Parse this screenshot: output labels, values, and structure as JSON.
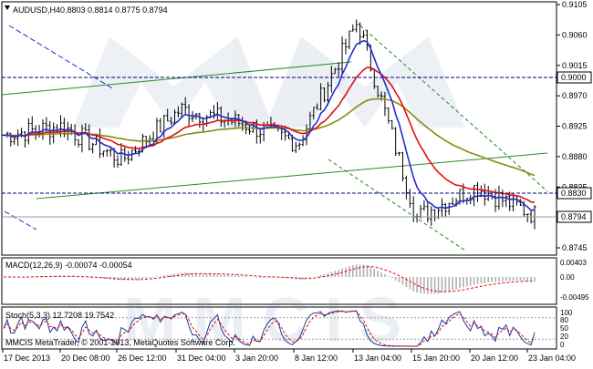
{
  "chart_header": {
    "symbol": "AUDUSD,H4",
    "ohlc": "0.8803 0.8814 0.8775 0.8794"
  },
  "price_axis": {
    "ticks": [
      "0.9105",
      "0.9060",
      "0.9015",
      "0.8970",
      "0.8925",
      "0.8880",
      "0.8835",
      "0.8790",
      "0.8745"
    ],
    "level_labels": [
      "0.9000",
      "0.8830"
    ],
    "current_price": "0.8794"
  },
  "macd": {
    "label": "MACD(12,26,9) -0.00074 -0.00054",
    "ticks": [
      "0.00403",
      "0.00",
      "-0.00495"
    ]
  },
  "stoch": {
    "label": "Stoch(5,3,3) 12.7208 19.7542",
    "ticks": [
      "100",
      "80",
      "50",
      "20",
      "0"
    ]
  },
  "time_axis": [
    "17 Dec 2013",
    "20 Dec 08:00",
    "26 Dec 12:00",
    "31 Dec 04:00",
    "3 Jan 20:00",
    "8 Jan 12:00",
    "13 Jan 04:00",
    "15 Jan 20:00",
    "20 Jan 12:00",
    "23 Jan 04:00"
  ],
  "copyright": "MMCIS MetaTrader, © 2001-2013, MetaQuotes Software Corp.",
  "watermark": "MMCIS",
  "colors": {
    "price": "#000000",
    "ma_fast": "#1f2fd0",
    "ma_mid": "#e01010",
    "ma_slow": "#8a8a10",
    "channel_green": "#2a8a2a",
    "channel_dash": "#1a8a1a",
    "level": "#000080"
  },
  "chart_data": {
    "type": "line",
    "x": [
      "17 Dec 2013",
      "20 Dec 08:00",
      "26 Dec 12:00",
      "31 Dec 04:00",
      "3 Jan 20:00",
      "8 Jan 12:00",
      "13 Jan 04:00",
      "15 Jan 20:00",
      "20 Jan 12:00",
      "23 Jan 04:00"
    ],
    "series": [
      {
        "values": [
          0.8912,
          0.8925,
          0.8875,
          0.895,
          0.893,
          0.89,
          0.908,
          0.879,
          0.8835,
          0.8794
        ]
      }
    ],
    "ylim": [
      0.8745,
      0.9105
    ]
  }
}
